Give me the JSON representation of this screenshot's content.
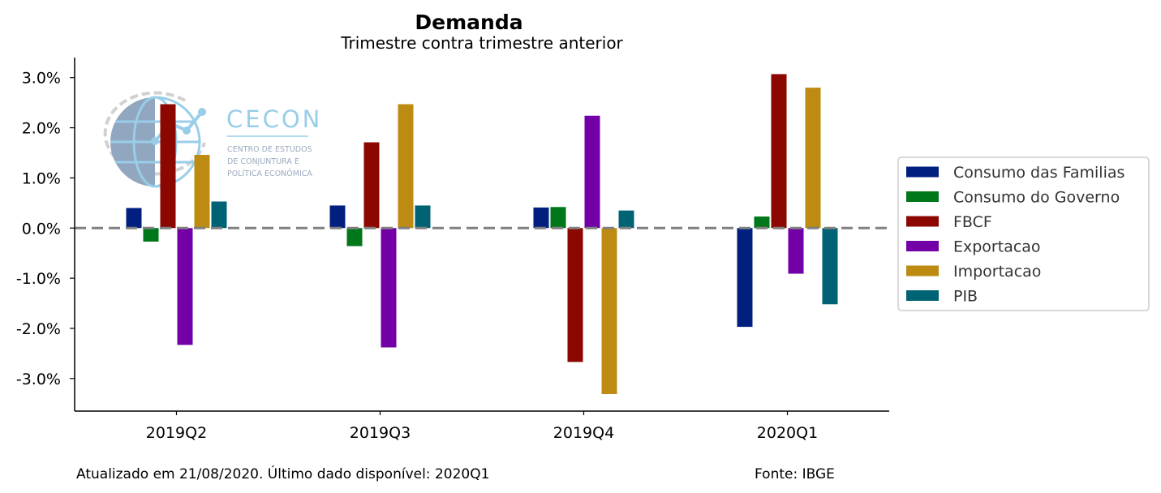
{
  "chart_data": {
    "type": "bar",
    "title": "Demanda",
    "subtitle": "Trimestre contra trimestre anterior",
    "categories": [
      "2019Q2",
      "2019Q3",
      "2019Q4",
      "2020Q1"
    ],
    "ylim": [
      -3.65,
      3.4
    ],
    "yticks": [
      3.0,
      2.0,
      1.0,
      0.0,
      -1.0,
      -2.0,
      -3.0
    ],
    "ytick_labels": [
      "3.0%",
      "2.0%",
      "1.0%",
      "0.0%",
      "-1.0%",
      "-2.0%",
      "-3.0%"
    ],
    "reference_line": {
      "y": 0,
      "style": "dashed",
      "color": "#808080"
    },
    "legend_position": "right",
    "series": [
      {
        "name": "Consumo das Familias",
        "color": "#001f7f",
        "values": [
          0.4,
          0.45,
          0.41,
          -1.97
        ]
      },
      {
        "name": "Consumo do Governo",
        "color": "#00771a",
        "values": [
          -0.27,
          -0.36,
          0.42,
          0.23
        ]
      },
      {
        "name": "FBCF",
        "color": "#8b0700",
        "values": [
          2.47,
          1.71,
          -2.67,
          3.07
        ]
      },
      {
        "name": "Exportacao",
        "color": "#7300a6",
        "values": [
          -2.33,
          -2.38,
          2.24,
          -0.91
        ]
      },
      {
        "name": "Importacao",
        "color": "#bd8b12",
        "values": [
          1.46,
          2.47,
          -3.31,
          2.8
        ]
      },
      {
        "name": "PIB",
        "color": "#006374",
        "values": [
          0.53,
          0.45,
          0.35,
          -1.52
        ]
      }
    ]
  },
  "logo": {
    "name": "CECON",
    "line1": "CENTRO DE ESTUDOS",
    "line2": "DE CONJUNTURA E",
    "line3": "POLÍTICA ECONÔMICA"
  },
  "footer": {
    "updated": "Atualizado em 21/08/2020. Último dado disponível: 2020Q1",
    "source": "Fonte: IBGE"
  }
}
